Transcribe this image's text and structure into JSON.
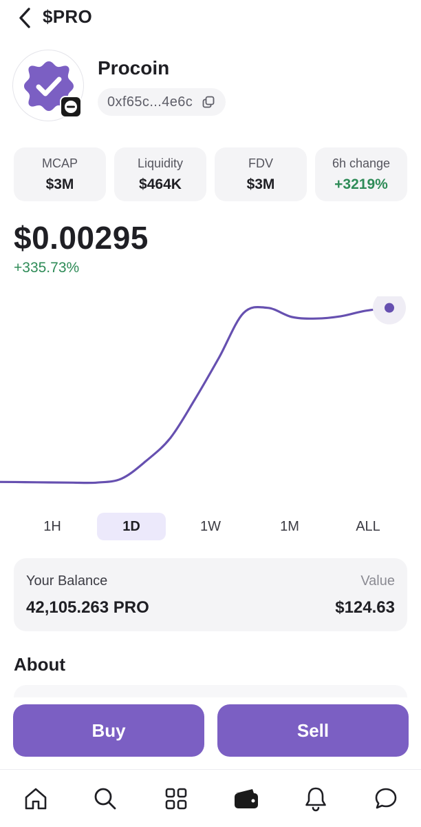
{
  "header": {
    "title": "$PRO"
  },
  "token": {
    "name": "Procoin",
    "address": "0xf65c...4e6c",
    "avatar_icon": "verified-badge-icon",
    "chain_icon": "chain-badge-icon"
  },
  "stats": [
    {
      "label": "MCAP",
      "value": "$3M"
    },
    {
      "label": "Liquidity",
      "value": "$464K"
    },
    {
      "label": "FDV",
      "value": "$3M"
    },
    {
      "label": "6h change",
      "value": "+3219%"
    }
  ],
  "price": {
    "value": "$0.00295",
    "change": "+335.73%"
  },
  "chart_data": {
    "type": "line",
    "title": "",
    "xlabel": "",
    "ylabel": "",
    "grid": false,
    "series": [
      {
        "values": [
          0.000676,
          0.000674,
          0.00067,
          0.000667,
          0.000668,
          0.00072,
          0.00095,
          0.00125,
          0.00175,
          0.0023,
          0.00288,
          0.00295,
          0.00283,
          0.00281,
          0.00284,
          0.00291,
          0.00295
        ]
      }
    ],
    "ylim": [
      0.0004,
      0.0031
    ],
    "line_color": "#6650b0"
  },
  "timeframes": {
    "selected": "1D",
    "items": [
      "1H",
      "1D",
      "1W",
      "1M",
      "ALL"
    ]
  },
  "balance": {
    "label": "Your Balance",
    "amount": "42,105.263 PRO",
    "value_label": "Value",
    "value": "$124.63"
  },
  "about": {
    "title": "About"
  },
  "actions": {
    "buy": "Buy",
    "sell": "Sell"
  },
  "nav": [
    {
      "icon": "home-icon"
    },
    {
      "icon": "search-icon"
    },
    {
      "icon": "apps-grid-icon"
    },
    {
      "icon": "wallet-icon",
      "active": true
    },
    {
      "icon": "bell-icon"
    },
    {
      "icon": "chat-icon"
    }
  ],
  "colors": {
    "accent": "#7b5fc3",
    "positive": "#2e8b57",
    "card": "#f4f4f6"
  }
}
